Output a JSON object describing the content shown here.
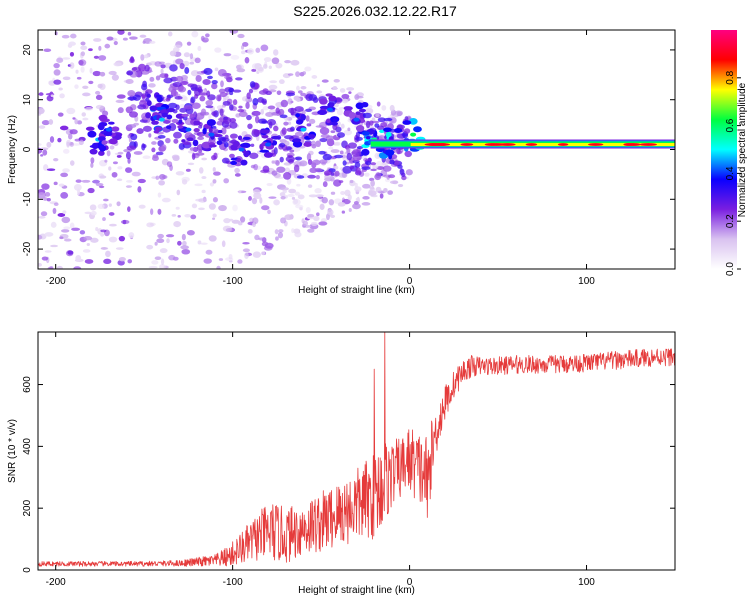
{
  "title": "S225.2026.032.12.22.R17",
  "chart_data": [
    {
      "type": "heatmap",
      "title": "",
      "xlabel": "Height of straight line (km)",
      "ylabel": "Frequency (Hz)",
      "xlim": [
        -210,
        150
      ],
      "ylim": [
        -24,
        24
      ],
      "xticks": [
        -200,
        -100,
        0,
        100
      ],
      "yticks": [
        -20,
        -10,
        0,
        10,
        20
      ],
      "colorbar": {
        "label": "Normalized spectral amplitude",
        "range": [
          0,
          1
        ],
        "ticks": [
          0.0,
          0.2,
          0.4,
          0.6,
          0.8
        ],
        "colors": [
          "#ffffff",
          "#d9c2f0",
          "#7a1fe0",
          "#0a00ff",
          "#00ffff",
          "#00ff40",
          "#ffff00",
          "#ff0000",
          "#ff0080"
        ]
      },
      "ridge": {
        "description": "narrow high-amplitude tone near 1 Hz",
        "x_start": -22,
        "x_end": 150,
        "frequency": 1.0,
        "peak_amplitude": 0.95
      },
      "clusters": [
        {
          "x": -176,
          "y": 2,
          "amplitude": 0.35
        },
        {
          "x": -170,
          "y": 4,
          "amplitude": 0.3
        },
        {
          "x": -145,
          "y": 8,
          "amplitude": 0.3
        },
        {
          "x": -140,
          "y": 6,
          "amplitude": 0.35
        },
        {
          "x": -125,
          "y": 4,
          "amplitude": 0.3
        },
        {
          "x": -112,
          "y": 3,
          "amplitude": 0.3
        },
        {
          "x": -95,
          "y": 0,
          "amplitude": 0.3
        },
        {
          "x": -80,
          "y": 1,
          "amplitude": 0.3
        },
        {
          "x": -60,
          "y": 4,
          "amplitude": 0.35
        },
        {
          "x": -45,
          "y": 8,
          "amplitude": 0.3
        },
        {
          "x": -30,
          "y": 6,
          "amplitude": 0.3
        },
        {
          "x": -20,
          "y": 2,
          "amplitude": 0.45
        },
        {
          "x": -10,
          "y": 1,
          "amplitude": 0.45
        },
        {
          "x": 2,
          "y": 3,
          "amplitude": 0.5
        }
      ]
    },
    {
      "type": "line",
      "title": "",
      "xlabel": "Height of straight line (km)",
      "ylabel": "SNR (10 * v/v)",
      "xlim": [
        -210,
        150
      ],
      "ylim": [
        0,
        770
      ],
      "xticks": [
        -200,
        -100,
        0,
        100
      ],
      "yticks": [
        0,
        200,
        400,
        600
      ],
      "series": [
        {
          "name": "SNR",
          "color": "#e53b3b",
          "x": [
            -210,
            -190,
            -170,
            -150,
            -130,
            -110,
            -102,
            -95,
            -85,
            -78,
            -70,
            -60,
            -50,
            -40,
            -30,
            -20,
            -15,
            -10,
            -5,
            0,
            5,
            10,
            15,
            20,
            25,
            30,
            35,
            40,
            50,
            60,
            80,
            100,
            120,
            140,
            150
          ],
          "y": [
            20,
            20,
            20,
            20,
            22,
            30,
            45,
            70,
            110,
            125,
            110,
            135,
            155,
            180,
            210,
            240,
            280,
            310,
            330,
            360,
            330,
            300,
            450,
            540,
            600,
            640,
            660,
            660,
            660,
            665,
            665,
            670,
            680,
            690,
            690
          ],
          "noise": [
            8,
            8,
            8,
            8,
            10,
            20,
            35,
            55,
            80,
            100,
            90,
            90,
            100,
            110,
            120,
            140,
            150,
            110,
            100,
            110,
            120,
            140,
            80,
            60,
            45,
            40,
            35,
            30,
            30,
            30,
            30,
            30,
            30,
            30,
            30
          ]
        }
      ],
      "spikes": [
        {
          "x": -14,
          "y": 770
        },
        {
          "x": -20,
          "y": 650
        },
        {
          "x": 10,
          "y": 170
        }
      ]
    }
  ]
}
